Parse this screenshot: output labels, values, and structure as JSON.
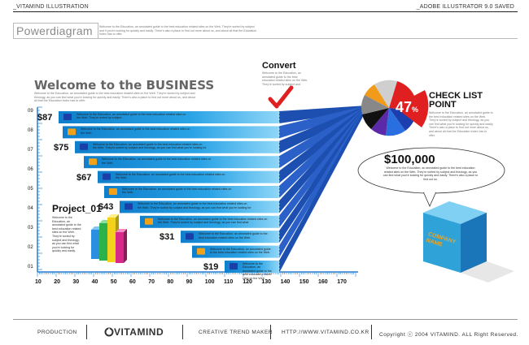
{
  "header": {
    "left": "_VITAMIND ILLUSTRATION",
    "right": "_ADOBE ILLUSTRATOR 9.0 SAVED"
  },
  "title": "Powerdiagram",
  "title_note": "Welcome to the Education, an annotated guide to the best education related sites on the Web. They're sorted by subject and if you're looking for quickly and easily. There's also a place to find out more about us, and about all that the Education Index has to offer.",
  "welcome": {
    "heading": "Welcome to the BUSINESS",
    "body": "Welcome to the Education, an annotated guide to the best education related sites on the Web. They're sorted by subject and theology, as you can find what you're looking for quickly and easily. There's also a place to find out more about us, and about all that the Education Index has to offer."
  },
  "convert": {
    "label": "Convert",
    "body": "Welcome to the Education, an annotated guide to the best education related sites on the Web. They're sorted by subject and"
  },
  "checklist": {
    "line1": "CHECK LIST",
    "line2": "POINT",
    "percent": "47",
    "percent_sign": "%",
    "body": "Welcome to the Education, an annotated guide to the best education related sites on the Web. They're sorted by subject and theology, as you can find what you're looking for quickly and easily. There's also a place to find out more about us, and about all that the Education Index has to offer."
  },
  "bars": [
    {
      "label": "$87",
      "text": "Welcome to the Education, an annotated guide to the best education related sites on the Web. They're sorted by subject",
      "icon": "computer-icon"
    },
    {
      "label": "",
      "text": "Welcome to the Education, an annotated guide to the best education related sites on the Web.",
      "icon": "notepad-icon"
    },
    {
      "label": "$75",
      "text": "Welcome to the Education, an annotated guide to the best education related sites on the Web. They're sorted by subject and theology, as you can find what you're looking for",
      "icon": "tv-icon"
    },
    {
      "label": "",
      "text": "Welcome to the Education, an annotated guide to the best education related sites on the Web.",
      "icon": "calendar-icon"
    },
    {
      "label": "$67",
      "text": "Welcome to the Education, an annotated guide to the best education related sites on the Web.",
      "icon": "mobile-icon"
    },
    {
      "label": "",
      "text": "Welcome to the Education, an annotated guide to the best education related sites on the Web.",
      "icon": "house-icon"
    },
    {
      "label": "$43",
      "text": "Welcome to the Education, an annotated guide to the best education related sites on the Web. They're sorted by subject and theology, as you can find what you're looking for",
      "icon": "tv-dvd-icon"
    },
    {
      "label": "",
      "text": "Welcome to the Education, an annotated guide to the best education related sites on the Web. They're sorted by subject and theology, as you can find what",
      "icon": "chart-note-icon"
    },
    {
      "label": "$31",
      "text": "Welcome to the Education, an annotated guide to the best education related sites on the Web.",
      "icon": "trash-icon"
    },
    {
      "label": "",
      "text": "Welcome to the Education, an annotated guide to the best education related sites on the Web.",
      "icon": "people-icon"
    },
    {
      "label": "$19",
      "text": "Welcome to the Education, an annotated guide to the best education related sites on the Web.",
      "icon": "printer-icon"
    }
  ],
  "project": {
    "label": "Project_01",
    "body": "Welcome to the Education, an annotated guide to the best education related sites on the Web. They're sorted by subject and theology, as you can find what you're looking for quickly and easily."
  },
  "y_ticks": [
    "09",
    "08",
    "07",
    "06",
    "05",
    "04",
    "03",
    "02",
    "01"
  ],
  "x_ticks": [
    "10",
    "20",
    "30",
    "40",
    "50",
    "60",
    "70",
    "80",
    "90",
    "100",
    "110",
    "120",
    "130",
    "140",
    "150",
    "160",
    "170"
  ],
  "money": {
    "value": "$100,000",
    "body": "Welcome to the Education, an annotated guide to the best education related sites on the Web. They're sorted by subject and theology, as you can find what you're looking for quickly and easily. There's also a place to find out so."
  },
  "box_label": {
    "line1": "COMPANY",
    "line2": "NAME"
  },
  "footer": {
    "production": "PRODUCTION",
    "logo": "VITAMIND",
    "tagline": "CREATIVE TREND MAKER",
    "url": "HTTP://WWW.VITAMIND.CO.KR",
    "copyright": "Copyright ⓒ 2004 VITAMIND. ALL Right Reserved."
  },
  "colors": {
    "bar_blue": "#1a8fd8",
    "bar_light": "#35b4ee",
    "ray_blue": "#1c4fb0",
    "pie_red": "#e02020",
    "box_blue": "#2fa3d8"
  }
}
